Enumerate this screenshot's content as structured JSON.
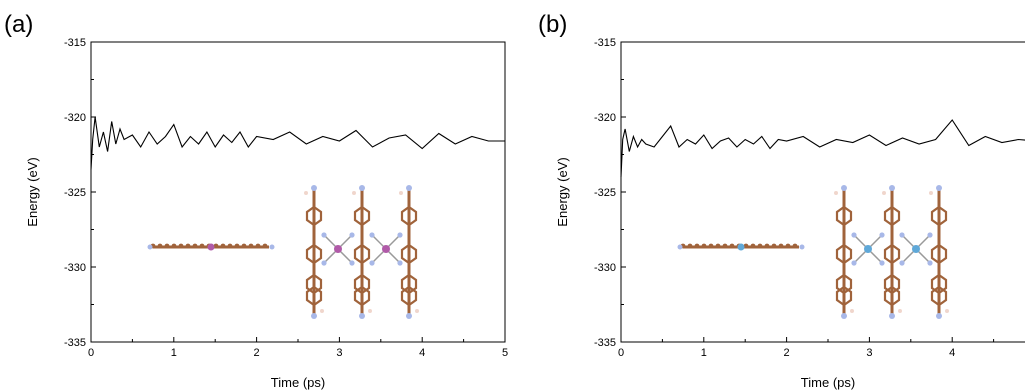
{
  "figure": {
    "panels": [
      "(a)",
      "(b)"
    ]
  },
  "colors": {
    "line": "#000000",
    "carbon": "#a0633b",
    "nitrogen": "#a8b8e8",
    "hydrogen": "#f0d6cc",
    "metal_a": "#b05aa8",
    "metal_b": "#5fa8d8"
  },
  "chart_data": [
    {
      "type": "line",
      "panel": "(a)",
      "xlabel": "Time (ps)",
      "ylabel": "Energy (eV)",
      "xlim": [
        0,
        5
      ],
      "ylim": [
        -335,
        -315
      ],
      "xticks": [
        "0",
        "1",
        "2",
        "3",
        "4",
        "5"
      ],
      "yticks": [
        "-315",
        "-320",
        "-325",
        "-330",
        "-335"
      ],
      "grid": false,
      "legend": "none",
      "series": [
        {
          "x": [
            0,
            0.02,
            0.05,
            0.1,
            0.15,
            0.2,
            0.25,
            0.3,
            0.35,
            0.4,
            0.5,
            0.6,
            0.7,
            0.8,
            0.9,
            1.0,
            1.1,
            1.2,
            1.3,
            1.4,
            1.5,
            1.6,
            1.7,
            1.8,
            1.9,
            2.0,
            2.2,
            2.4,
            2.6,
            2.8,
            3.0,
            3.2,
            3.4,
            3.6,
            3.8,
            4.0,
            4.2,
            4.4,
            4.6,
            4.8,
            5.0
          ],
          "y": [
            -323.5,
            -321.5,
            -320.0,
            -322.0,
            -321.0,
            -322.3,
            -320.3,
            -321.8,
            -320.8,
            -321.5,
            -321.2,
            -322.0,
            -321.0,
            -321.8,
            -321.3,
            -320.5,
            -322.0,
            -321.3,
            -321.8,
            -321.0,
            -322.0,
            -321.2,
            -321.7,
            -321.0,
            -322.0,
            -321.3,
            -321.5,
            -321.0,
            -321.8,
            -321.3,
            -321.6,
            -320.9,
            -322.0,
            -321.4,
            -321.2,
            -322.1,
            -321.1,
            -321.8,
            -321.3,
            -321.6,
            -321.6
          ]
        }
      ]
    },
    {
      "type": "line",
      "panel": "(b)",
      "xlabel": "Time (ps)",
      "ylabel": "Energy (eV)",
      "xlim": [
        0,
        5
      ],
      "ylim": [
        -335,
        -315
      ],
      "xticks": [
        "0",
        "1",
        "2",
        "3",
        "4"
      ],
      "yticks": [
        "-315",
        "-320",
        "-325",
        "-330",
        "-335"
      ],
      "grid": false,
      "legend": "none",
      "series": [
        {
          "x": [
            0,
            0.02,
            0.05,
            0.1,
            0.15,
            0.2,
            0.25,
            0.3,
            0.4,
            0.5,
            0.6,
            0.7,
            0.8,
            0.9,
            1.0,
            1.1,
            1.2,
            1.3,
            1.4,
            1.5,
            1.6,
            1.7,
            1.8,
            1.9,
            2.0,
            2.2,
            2.4,
            2.6,
            2.8,
            3.0,
            3.2,
            3.4,
            3.6,
            3.8,
            4.0,
            4.2,
            4.4,
            4.6,
            4.8,
            5.0
          ],
          "y": [
            -324.0,
            -321.5,
            -320.8,
            -322.3,
            -321.3,
            -322.0,
            -321.5,
            -321.8,
            -322.0,
            -321.3,
            -320.6,
            -322.0,
            -321.5,
            -321.8,
            -321.2,
            -322.1,
            -321.6,
            -321.4,
            -322.0,
            -321.5,
            -321.8,
            -321.3,
            -322.1,
            -321.5,
            -321.6,
            -321.3,
            -322.0,
            -321.5,
            -321.7,
            -321.2,
            -321.9,
            -321.4,
            -321.8,
            -321.5,
            -320.2,
            -321.9,
            -321.3,
            -321.7,
            -321.5,
            -321.6
          ]
        }
      ]
    }
  ]
}
